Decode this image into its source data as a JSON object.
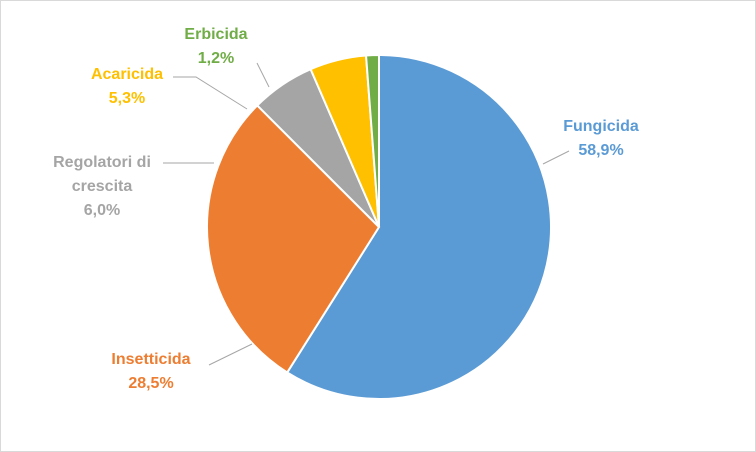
{
  "chart_data": {
    "type": "pie",
    "title": "",
    "legend": "none",
    "slices": [
      {
        "name": "Fungicida",
        "value": 58.9,
        "label": "58,9%",
        "color": "#5b9bd5"
      },
      {
        "name": "Insetticida",
        "value": 28.5,
        "label": "28,5%",
        "color": "#ed7d31"
      },
      {
        "name": "Regolatori di crescita",
        "name_lines": [
          "Regolatori di",
          "crescita"
        ],
        "value": 6.0,
        "label": "6,0%",
        "color": "#a5a5a5"
      },
      {
        "name": "Acaricida",
        "value": 5.3,
        "label": "5,3%",
        "color": "#ffc000"
      },
      {
        "name": "Erbicida",
        "value": 1.2,
        "label": "1,2%",
        "color": "#70ad47"
      }
    ]
  }
}
